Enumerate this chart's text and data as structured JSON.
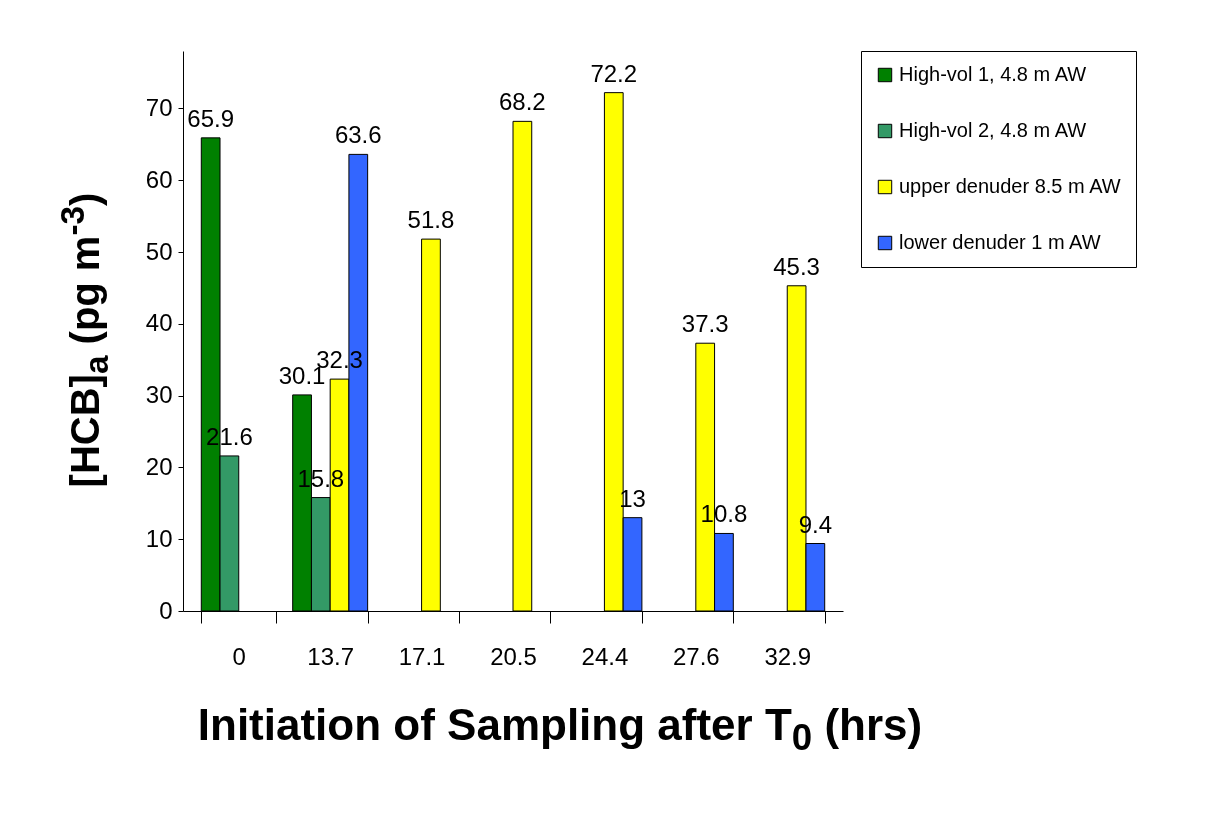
{
  "chart_data": {
    "type": "bar",
    "xlabel": "Initiation of Sampling after T$_{0}$ (hrs)",
    "ylabel": "[HCB]$_{a}$ (pg m$^{-3}$)",
    "categories": [
      "0",
      "13.7",
      "17.1",
      "20.5",
      "24.4",
      "27.6",
      "32.9"
    ],
    "series": [
      {
        "name": "High-vol 1, 4.8 m AW",
        "color": "#008000",
        "values": [
          65.9,
          30.1,
          null,
          null,
          null,
          null,
          null
        ]
      },
      {
        "name": "High-vol 2, 4.8 m AW",
        "color": "#339966",
        "values": [
          21.6,
          15.8,
          null,
          null,
          null,
          null,
          null
        ]
      },
      {
        "name": "upper denuder 8.5 m AW",
        "color": "#ffff00",
        "values": [
          null,
          32.3,
          51.8,
          68.2,
          72.2,
          37.3,
          45.3
        ]
      },
      {
        "name": "lower denuder 1 m AW",
        "color": "#3366ff",
        "values": [
          null,
          63.6,
          null,
          null,
          13,
          10.8,
          9.4
        ]
      }
    ],
    "ylim": [
      0,
      78
    ],
    "yticks": [
      0,
      10,
      20,
      30,
      40,
      50,
      60,
      70
    ],
    "data_labels": true,
    "legend": "right",
    "grid": false
  }
}
